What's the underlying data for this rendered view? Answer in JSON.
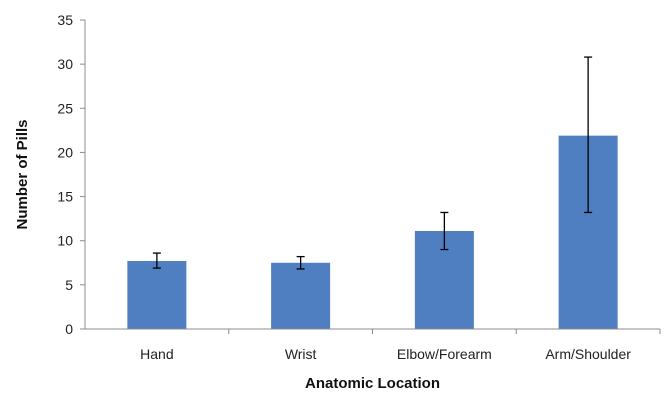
{
  "chart_data": {
    "type": "bar",
    "categories": [
      "Hand",
      "Wrist",
      "Elbow/Forearm",
      "Arm/Shoulder"
    ],
    "values": [
      7.7,
      7.5,
      11.1,
      21.9
    ],
    "error_bars": [
      {
        "low": 6.9,
        "high": 8.6
      },
      {
        "low": 6.8,
        "high": 8.2
      },
      {
        "low": 9.0,
        "high": 13.2
      },
      {
        "low": 13.2,
        "high": 30.8
      }
    ],
    "title": "",
    "xlabel": "Anatomic Location",
    "ylabel": "Number of Pills",
    "ylim": [
      0,
      35
    ],
    "yticks": [
      "0",
      "5",
      "10",
      "15",
      "20",
      "25",
      "30",
      "35"
    ],
    "grid": false,
    "legend": "none",
    "bar_color": "#4f7ec1"
  }
}
